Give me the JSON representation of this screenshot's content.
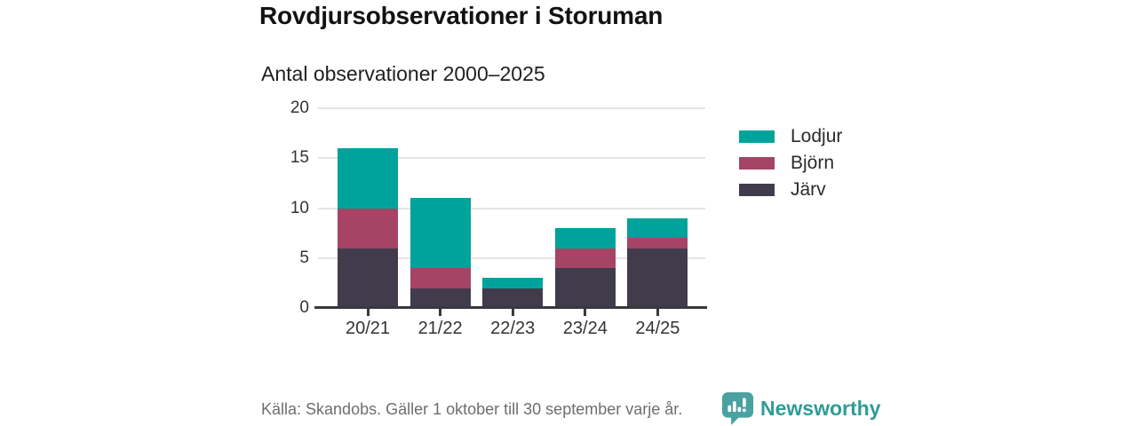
{
  "header": {
    "title": "Rovdjursobservationer i Storuman",
    "subtitle": "Antal observationer 2000–2025"
  },
  "chart_data": {
    "type": "bar",
    "stacked": true,
    "title": "Rovdjursobservationer i Storuman",
    "subtitle": "Antal observationer 2000–2025",
    "categories": [
      "20/21",
      "21/22",
      "22/23",
      "23/24",
      "24/25"
    ],
    "series": [
      {
        "name": "Lodjur",
        "color": "#00a39b",
        "values": [
          6,
          7,
          1,
          2,
          2
        ]
      },
      {
        "name": "Björn",
        "color": "#a64465",
        "values": [
          4,
          2,
          0,
          2,
          1
        ]
      },
      {
        "name": "Järv",
        "color": "#413c4c",
        "values": [
          6,
          2,
          2,
          4,
          6
        ]
      }
    ],
    "totals": [
      16,
      11,
      3,
      8,
      9
    ],
    "xlabel": "",
    "ylabel": "",
    "ylim": [
      0,
      20
    ],
    "yticks": [
      0,
      5,
      10,
      15,
      20
    ],
    "grid": true,
    "legend_position": "right"
  },
  "colors": {
    "grid": "#e4e4e4",
    "axis": "#38383d",
    "tick_text": "#333333",
    "brand_teal": "#2e9c98",
    "brand_icon_teal": "#4aa1a1"
  },
  "footer": {
    "source": "Källa: Skandobs. Gäller 1 oktober till 30 september varje år.",
    "brand": "Newsworthy"
  }
}
